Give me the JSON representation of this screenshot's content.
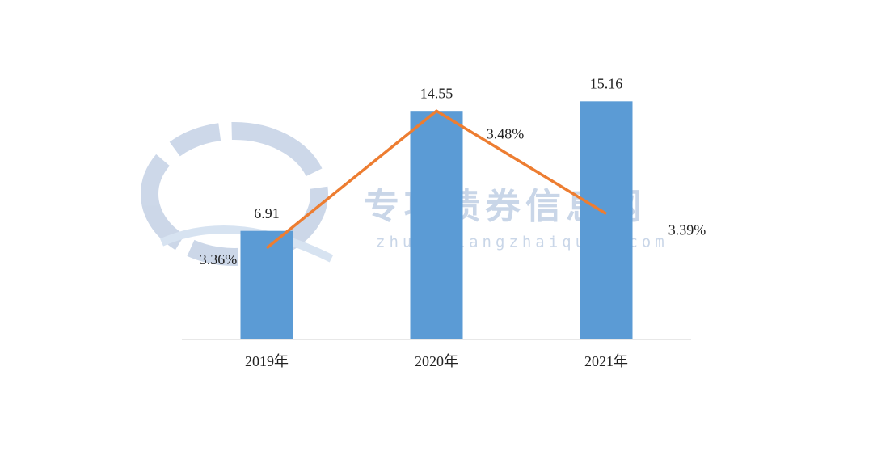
{
  "chart_data": {
    "type": "combo",
    "categories": [
      "2019年",
      "2020年",
      "2021年"
    ],
    "series": [
      {
        "type": "bar",
        "color": "#5b9bd5",
        "values": [
          6.91,
          14.55,
          15.16
        ]
      },
      {
        "type": "line",
        "axis": "y2",
        "color": "#ed7d31",
        "values": [
          3.36,
          3.48,
          3.39
        ],
        "value_labels": [
          "3.36%",
          "3.48%",
          "3.39%"
        ]
      }
    ],
    "ylim": [
      0,
      16
    ],
    "y2lim": [
      3.28,
      3.5
    ],
    "grid": false
  },
  "watermark": {
    "title": "专项债券信息网",
    "url": "zhuanxiangzhaiquan.com"
  }
}
